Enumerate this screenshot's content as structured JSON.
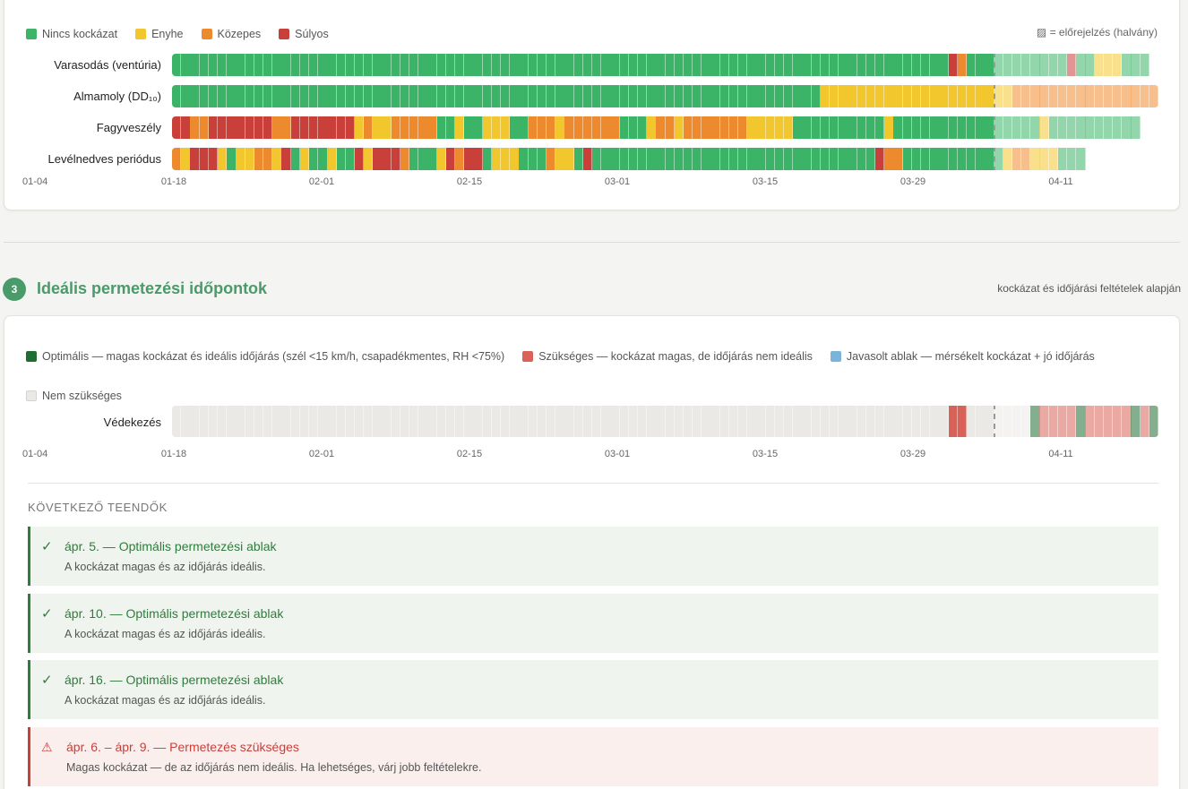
{
  "colors": {
    "none": "#3cb468",
    "mild": "#f2c62d",
    "moderate": "#ee8a2e",
    "severe": "#c9403a",
    "optimal": "#1e6d32",
    "needed": "#d96258",
    "suggested": "#7ab5d9",
    "not_needed": "#ebe9e6"
  },
  "risk_legend": [
    {
      "key": "none",
      "label": "Nincs kockázat"
    },
    {
      "key": "mild",
      "label": "Enyhe"
    },
    {
      "key": "moderate",
      "label": "Közepes"
    },
    {
      "key": "severe",
      "label": "Súlyos"
    }
  ],
  "forecast_note": "▨ = előrejelzés (halvány)",
  "axis_labels": [
    "01-04",
    "01-18",
    "02-01",
    "02-15",
    "03-01",
    "03-15",
    "03-29",
    "04-11"
  ],
  "risk_chart": {
    "start_date": "01-18",
    "days": 108,
    "forecast_from_day": 90,
    "rows": [
      {
        "label": "Varasodás (ventúria)",
        "segments": [
          [
            "none",
            85
          ],
          [
            "severe",
            1
          ],
          [
            "moderate",
            1
          ],
          [
            "none",
            3
          ],
          [
            "none",
            8
          ],
          [
            "severe",
            1
          ],
          [
            "none",
            2
          ],
          [
            "mild",
            3
          ],
          [
            "none",
            3
          ]
        ]
      },
      {
        "label": "Almamoly (DD₁₀)",
        "segments": [
          [
            "none",
            71
          ],
          [
            "mild",
            19
          ],
          [
            "mild",
            2
          ],
          [
            "moderate",
            16
          ]
        ]
      },
      {
        "label": "Fagyveszély",
        "segments": [
          [
            "severe",
            2
          ],
          [
            "moderate",
            2
          ],
          [
            "severe",
            7
          ],
          [
            "moderate",
            2
          ],
          [
            "severe",
            7
          ],
          [
            "mild",
            1
          ],
          [
            "moderate",
            1
          ],
          [
            "mild",
            2
          ],
          [
            "moderate",
            5
          ],
          [
            "none",
            2
          ],
          [
            "mild",
            1
          ],
          [
            "none",
            2
          ],
          [
            "mild",
            3
          ],
          [
            "none",
            2
          ],
          [
            "moderate",
            3
          ],
          [
            "mild",
            1
          ],
          [
            "moderate",
            6
          ],
          [
            "none",
            3
          ],
          [
            "mild",
            1
          ],
          [
            "moderate",
            2
          ],
          [
            "mild",
            1
          ],
          [
            "moderate",
            7
          ],
          [
            "mild",
            5
          ],
          [
            "none",
            10
          ],
          [
            "mild",
            1
          ],
          [
            "none",
            9
          ],
          [
            "none",
            7
          ],
          [
            "mild",
            1
          ],
          [
            "none",
            10
          ]
        ]
      },
      {
        "label": "Levélnedves periódus",
        "segments": [
          [
            "moderate",
            1
          ],
          [
            "mild",
            1
          ],
          [
            "severe",
            3
          ],
          [
            "mild",
            1
          ],
          [
            "none",
            1
          ],
          [
            "mild",
            2
          ],
          [
            "moderate",
            2
          ],
          [
            "mild",
            1
          ],
          [
            "severe",
            1
          ],
          [
            "none",
            1
          ],
          [
            "mild",
            1
          ],
          [
            "none",
            2
          ],
          [
            "mild",
            1
          ],
          [
            "none",
            2
          ],
          [
            "severe",
            1
          ],
          [
            "mild",
            1
          ],
          [
            "severe",
            3
          ],
          [
            "moderate",
            1
          ],
          [
            "none",
            3
          ],
          [
            "mild",
            1
          ],
          [
            "severe",
            1
          ],
          [
            "moderate",
            1
          ],
          [
            "severe",
            2
          ],
          [
            "none",
            1
          ],
          [
            "mild",
            3
          ],
          [
            "none",
            3
          ],
          [
            "moderate",
            1
          ],
          [
            "mild",
            2
          ],
          [
            "none",
            1
          ],
          [
            "severe",
            1
          ],
          [
            "none",
            31
          ],
          [
            "severe",
            1
          ],
          [
            "moderate",
            2
          ],
          [
            "none",
            3
          ],
          [
            "none",
            8
          ],
          [
            "mild",
            1
          ],
          [
            "moderate",
            2
          ],
          [
            "mild",
            3
          ],
          [
            "none",
            3
          ]
        ]
      }
    ]
  },
  "section3": {
    "number": "3",
    "title": "Ideális permetezési időpontok",
    "subtitle": "kockázat és időjárási feltételek alapján"
  },
  "spray_legend": [
    {
      "key": "optimal",
      "label": "Optimális — magas kockázat és ideális időjárás (szél <15 km/h, csapadékmentes, RH <75%)"
    },
    {
      "key": "needed",
      "label": "Szükséges — kockázat magas, de időjárás nem ideális"
    },
    {
      "key": "suggested",
      "label": "Javasolt ablak — mérsékelt kockázat + jó időjárás"
    },
    {
      "key": "not_needed",
      "label": "Nem szükséges"
    }
  ],
  "spray_chart": {
    "label": "Védekezés",
    "days": 108,
    "forecast_from_day": 90,
    "segments": [
      [
        "not_needed",
        85
      ],
      [
        "needed",
        2
      ],
      [
        "not_needed",
        3
      ],
      [
        "not_needed",
        4
      ],
      [
        "optimal",
        1
      ],
      [
        "needed",
        4
      ],
      [
        "optimal",
        1
      ],
      [
        "needed",
        5
      ],
      [
        "optimal",
        1
      ],
      [
        "needed",
        1
      ],
      [
        "optimal",
        1
      ],
      [
        "needed",
        1
      ]
    ]
  },
  "next_steps": {
    "heading": "KÖVETKEZŐ TEENDŐK",
    "items": [
      {
        "type": "ok",
        "icon": "check-icon",
        "glyph": "✓",
        "title": "ápr. 5. — Optimális permetezési ablak",
        "desc": "A kockázat magas és az időjárás ideális."
      },
      {
        "type": "ok",
        "icon": "check-icon",
        "glyph": "✓",
        "title": "ápr. 10. — Optimális permetezési ablak",
        "desc": "A kockázat magas és az időjárás ideális."
      },
      {
        "type": "ok",
        "icon": "check-icon",
        "glyph": "✓",
        "title": "ápr. 16. — Optimális permetezési ablak",
        "desc": "A kockázat magas és az időjárás ideális."
      },
      {
        "type": "warn",
        "icon": "warning-icon",
        "glyph": "⚠",
        "title": "ápr. 6. – ápr. 9. — Permetezés szükséges",
        "desc": "Magas kockázat — de az időjárás nem ideális. Ha lehetséges, várj jobb feltételekre."
      }
    ]
  }
}
